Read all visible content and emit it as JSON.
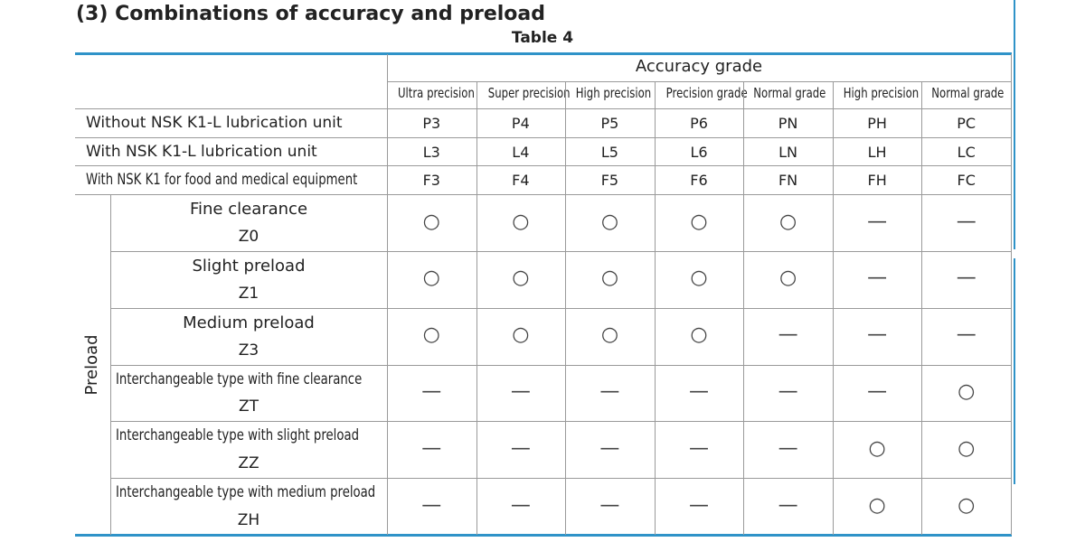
{
  "title": "(3) Combinations of accuracy and preload",
  "caption": "Table 4",
  "table": {
    "group_header": "Accuracy grade",
    "grades": [
      "Ultra precision",
      "Super precision",
      "High precision",
      "Precision grade",
      "Normal grade",
      "High precision",
      "Normal grade"
    ],
    "code_rows": [
      {
        "label": "Without NSK K1-L lubrication unit",
        "codes": [
          "P3",
          "P4",
          "P5",
          "P6",
          "PN",
          "PH",
          "PC"
        ]
      },
      {
        "label": "With NSK K1-L lubrication unit",
        "codes": [
          "L3",
          "L4",
          "L5",
          "L6",
          "LN",
          "LH",
          "LC"
        ]
      },
      {
        "label": "With NSK K1 for food and medical equipment",
        "codes": [
          "F3",
          "F4",
          "F5",
          "F6",
          "FN",
          "FH",
          "FC"
        ]
      }
    ],
    "side_label": "Preload",
    "preload_rows": [
      {
        "name": "Fine clearance",
        "code": "Z0",
        "cells": [
          "○",
          "○",
          "○",
          "○",
          "○",
          "—",
          "—"
        ]
      },
      {
        "name": "Slight preload",
        "code": "Z1",
        "cells": [
          "○",
          "○",
          "○",
          "○",
          "○",
          "—",
          "—"
        ]
      },
      {
        "name": "Medium preload",
        "code": "Z3",
        "cells": [
          "○",
          "○",
          "○",
          "○",
          "—",
          "—",
          "—"
        ]
      },
      {
        "name": "Interchangeable type with fine clearance",
        "code": "ZT",
        "cells": [
          "—",
          "—",
          "—",
          "—",
          "—",
          "—",
          "○"
        ]
      },
      {
        "name": "Interchangeable type with slight preload",
        "code": "ZZ",
        "cells": [
          "—",
          "—",
          "—",
          "—",
          "—",
          "○",
          "○"
        ]
      },
      {
        "name": "Interchangeable type with medium preload",
        "code": "ZH",
        "cells": [
          "—",
          "—",
          "—",
          "—",
          "—",
          "○",
          "○"
        ]
      }
    ]
  }
}
